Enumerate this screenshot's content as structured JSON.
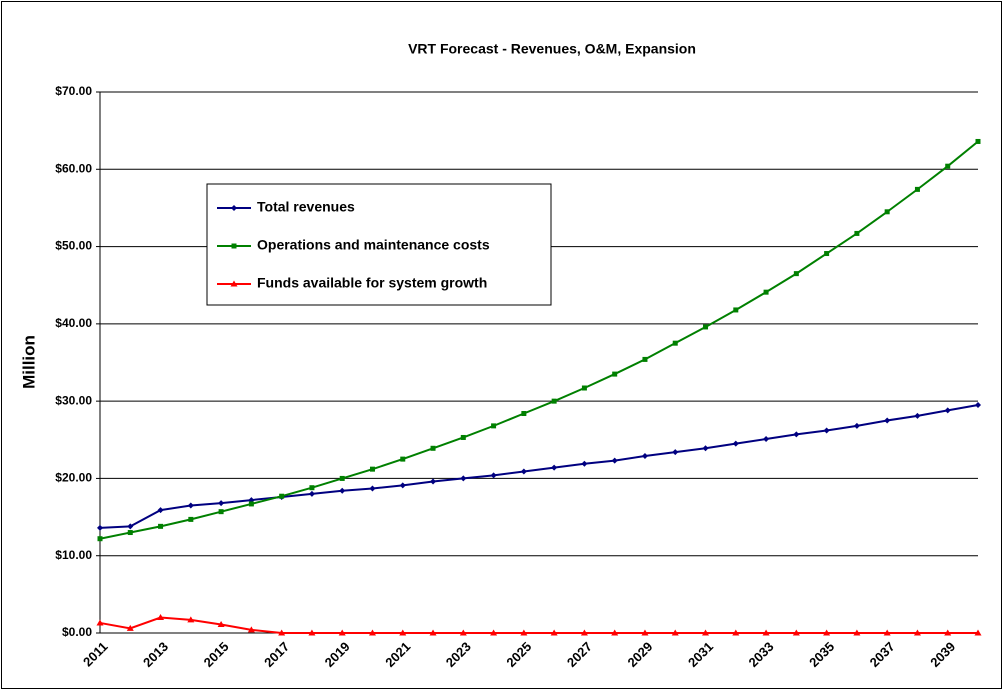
{
  "chart_data": {
    "type": "line",
    "title": "VRT Forecast - Revenues, O&M, Expansion",
    "y_label": "Million",
    "categories": [
      "2011",
      null,
      "2013",
      null,
      "2015",
      null,
      "2017",
      null,
      "2019",
      null,
      "2021",
      null,
      "2023",
      null,
      "2025",
      null,
      "2027",
      null,
      "2029",
      null,
      "2031",
      null,
      "2033",
      null,
      "2035",
      null,
      "2037",
      null,
      "2039",
      null
    ],
    "series": [
      {
        "name": "Total revenues",
        "color": "#000080",
        "marker": "diamond",
        "values": [
          13.6,
          13.8,
          15.9,
          16.5,
          16.8,
          17.2,
          17.6,
          18.0,
          18.4,
          18.7,
          19.1,
          19.6,
          20.0,
          20.4,
          20.9,
          21.4,
          21.9,
          22.3,
          22.9,
          23.4,
          23.9,
          24.5,
          25.1,
          25.7,
          26.2,
          26.8,
          27.5,
          28.1,
          28.8,
          29.5
        ]
      },
      {
        "name": "Operations and maintenance costs",
        "color": "#008000",
        "marker": "square",
        "values": [
          12.2,
          13.0,
          13.8,
          14.7,
          15.7,
          16.7,
          17.7,
          18.8,
          20.0,
          21.2,
          22.5,
          23.9,
          25.3,
          26.8,
          28.4,
          30.0,
          31.7,
          33.5,
          35.4,
          37.5,
          39.6,
          41.8,
          44.1,
          46.5,
          49.1,
          51.7,
          54.5,
          57.4,
          60.4,
          63.6
        ]
      },
      {
        "name": "Funds available for system growth",
        "color": "#ff0000",
        "marker": "triangle",
        "values": [
          1.3,
          0.6,
          2.0,
          1.7,
          1.1,
          0.4,
          0,
          0,
          0,
          0,
          0,
          0,
          0,
          0,
          0,
          0,
          0,
          0,
          0,
          0,
          0,
          0,
          0,
          0,
          0,
          0,
          0,
          0,
          0,
          0
        ]
      }
    ],
    "ylim": [
      0,
      70
    ],
    "yticks": [
      {
        "value": 0,
        "label": "$0.00"
      },
      {
        "value": 10,
        "label": "$10.00"
      },
      {
        "value": 20,
        "label": "$20.00"
      },
      {
        "value": 30,
        "label": "$30.00"
      },
      {
        "value": 40,
        "label": "$40.00"
      },
      {
        "value": 50,
        "label": "$50.00"
      },
      {
        "value": 60,
        "label": "$60.00"
      },
      {
        "value": 70,
        "label": "$70.00"
      }
    ],
    "grid": true,
    "legend": "upper left"
  }
}
